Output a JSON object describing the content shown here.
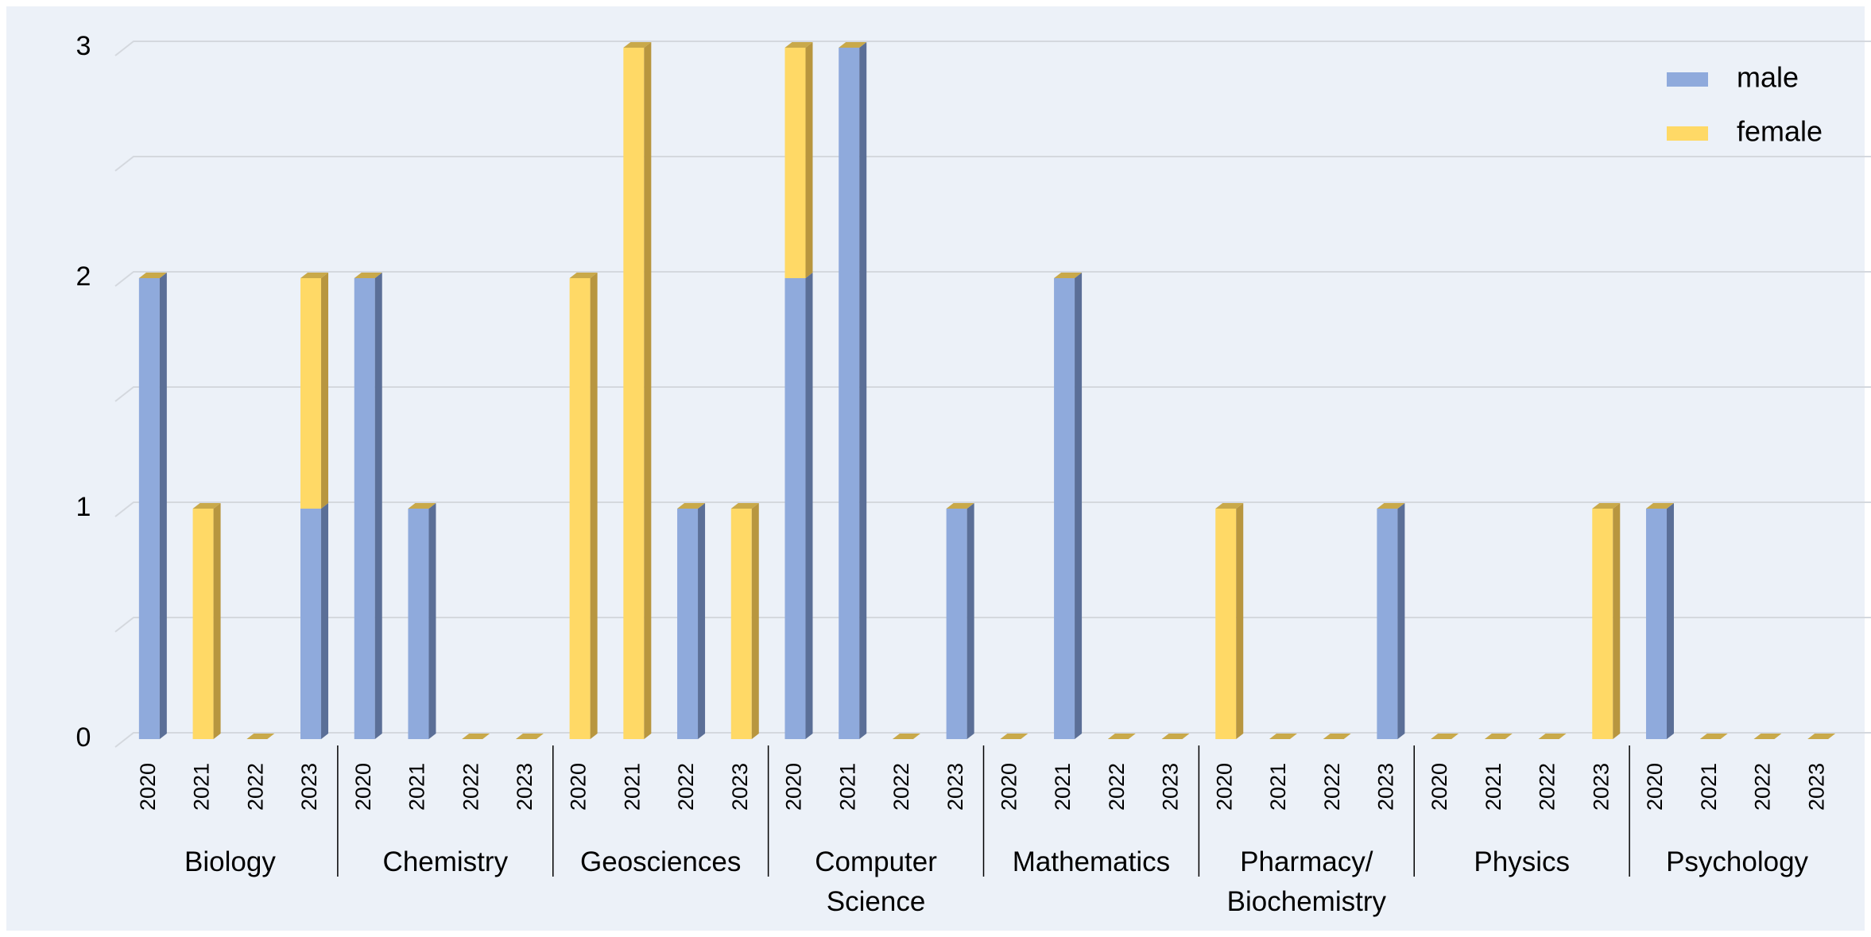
{
  "chart_data": {
    "type": "stacked-bar-3d",
    "categories": [
      "2020",
      "2021",
      "2022",
      "2023",
      "2020",
      "2021",
      "2022",
      "2023",
      "2020",
      "2021",
      "2022",
      "2023",
      "2020",
      "2021",
      "2022",
      "2023",
      "2020",
      "2021",
      "2022",
      "2023",
      "2020",
      "2021",
      "2022",
      "2023",
      "2020",
      "2021",
      "2022",
      "2023",
      "2020",
      "2021",
      "2022",
      "2023"
    ],
    "category_groups": [
      "Biology",
      "Chemistry",
      "Geosciences",
      "Computer Science",
      "Mathematics",
      "Pharmacy/ Biochemistry",
      "Physics",
      "Psychology"
    ],
    "series": [
      {
        "name": "male",
        "color": "#8faadc",
        "side_color": "#5b6f97",
        "values": [
          2,
          0,
          0,
          1,
          2,
          1,
          0,
          0,
          0,
          0,
          1,
          0,
          2,
          3,
          0,
          1,
          0,
          2,
          0,
          0,
          0,
          0,
          0,
          1,
          0,
          0,
          0,
          0,
          1,
          0,
          0,
          0
        ]
      },
      {
        "name": "female",
        "color": "#ffd966",
        "side_color": "#b8963f",
        "values": [
          0,
          1,
          0,
          1,
          0,
          0,
          0,
          0,
          2,
          3,
          0,
          1,
          1,
          0,
          0,
          0,
          0,
          0,
          0,
          0,
          1,
          0,
          0,
          0,
          0,
          0,
          0,
          1,
          0,
          0,
          0,
          0
        ]
      }
    ],
    "ylim": [
      0,
      3
    ],
    "yticks": [
      0,
      1,
      2,
      3
    ],
    "minor_yticks": [
      0.5,
      1.5,
      2.5
    ],
    "grid": true,
    "legend": "top-right"
  }
}
